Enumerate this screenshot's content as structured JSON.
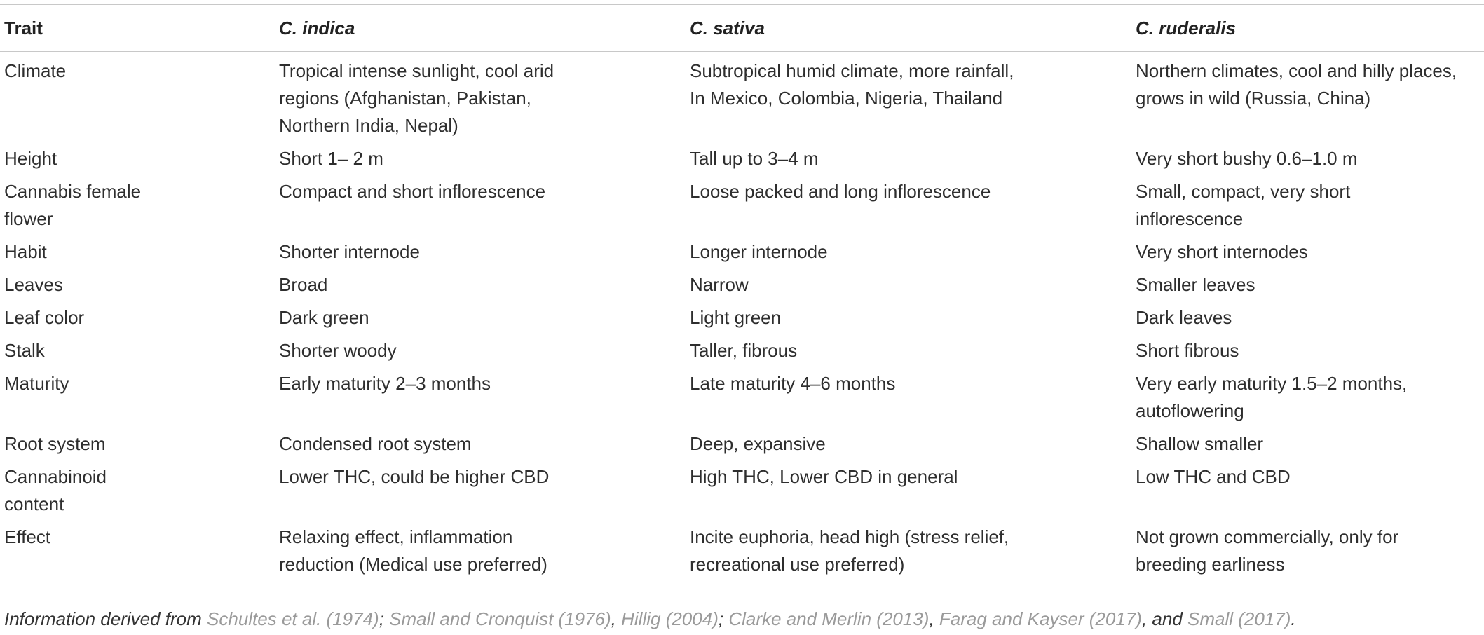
{
  "table": {
    "headers": [
      "Trait",
      "C. indica",
      "C. sativa",
      "C. ruderalis"
    ],
    "rows": [
      {
        "trait": [
          "Climate"
        ],
        "indica": [
          "Tropical intense sunlight, cool arid",
          "regions (Afghanistan, Pakistan,",
          "Northern India, Nepal)"
        ],
        "sativa": [
          "Subtropical humid climate, more rainfall,",
          "In Mexico, Colombia, Nigeria, Thailand"
        ],
        "ruderalis": [
          "Northern climates, cool and hilly places,",
          "grows in wild (Russia, China)"
        ]
      },
      {
        "trait": [
          "Height"
        ],
        "indica": [
          "Short 1– 2 m"
        ],
        "sativa": [
          "Tall up to 3–4 m"
        ],
        "ruderalis": [
          "Very short bushy 0.6–1.0 m"
        ]
      },
      {
        "trait": [
          "Cannabis female",
          "flower"
        ],
        "indica": [
          "Compact and short inflorescence"
        ],
        "sativa": [
          "Loose packed and long inflorescence"
        ],
        "ruderalis": [
          "Small, compact, very short",
          "inflorescence"
        ]
      },
      {
        "trait": [
          "Habit"
        ],
        "indica": [
          "Shorter internode"
        ],
        "sativa": [
          "Longer internode"
        ],
        "ruderalis": [
          "Very short internodes"
        ]
      },
      {
        "trait": [
          "Leaves"
        ],
        "indica": [
          "Broad"
        ],
        "sativa": [
          "Narrow"
        ],
        "ruderalis": [
          "Smaller leaves"
        ]
      },
      {
        "trait": [
          "Leaf color"
        ],
        "indica": [
          "Dark green"
        ],
        "sativa": [
          "Light green"
        ],
        "ruderalis": [
          "Dark leaves"
        ]
      },
      {
        "trait": [
          "Stalk"
        ],
        "indica": [
          "Shorter woody"
        ],
        "sativa": [
          "Taller, fibrous"
        ],
        "ruderalis": [
          "Short fibrous"
        ]
      },
      {
        "trait": [
          "Maturity"
        ],
        "indica": [
          "Early maturity 2–3 months"
        ],
        "sativa": [
          "Late maturity 4–6 months"
        ],
        "ruderalis": [
          "Very early maturity 1.5–2 months,",
          "autoflowering"
        ]
      },
      {
        "trait": [
          "Root system"
        ],
        "indica": [
          "Condensed root system"
        ],
        "sativa": [
          "Deep, expansive"
        ],
        "ruderalis": [
          "Shallow smaller"
        ]
      },
      {
        "trait": [
          "Cannabinoid",
          "content"
        ],
        "indica": [
          "Lower THC, could be higher CBD"
        ],
        "sativa": [
          "High THC, Lower CBD in general"
        ],
        "ruderalis": [
          "Low THC and CBD"
        ]
      },
      {
        "trait": [
          "Effect"
        ],
        "indica": [
          "Relaxing effect, inflammation",
          "reduction (Medical use preferred)"
        ],
        "sativa": [
          "Incite euphoria, head high (stress relief,",
          "recreational use preferred)"
        ],
        "ruderalis": [
          "Not grown commercially, only for",
          "breeding earliness"
        ]
      }
    ]
  },
  "footnote": {
    "prefix": "Information derived from ",
    "parts": [
      {
        "text": "Schultes et al. (1974)",
        "ref": true
      },
      {
        "text": "; ",
        "ref": false
      },
      {
        "text": "Small and Cronquist (1976)",
        "ref": true
      },
      {
        "text": ", ",
        "ref": false
      },
      {
        "text": "Hillig (2004)",
        "ref": true
      },
      {
        "text": "; ",
        "ref": false
      },
      {
        "text": "Clarke and Merlin (2013)",
        "ref": true
      },
      {
        "text": ", ",
        "ref": false
      },
      {
        "text": "Farag and Kayser (2017)",
        "ref": true
      },
      {
        "text": ", and ",
        "ref": false
      },
      {
        "text": "Small (2017)",
        "ref": true
      },
      {
        "text": ".",
        "ref": false
      }
    ]
  }
}
